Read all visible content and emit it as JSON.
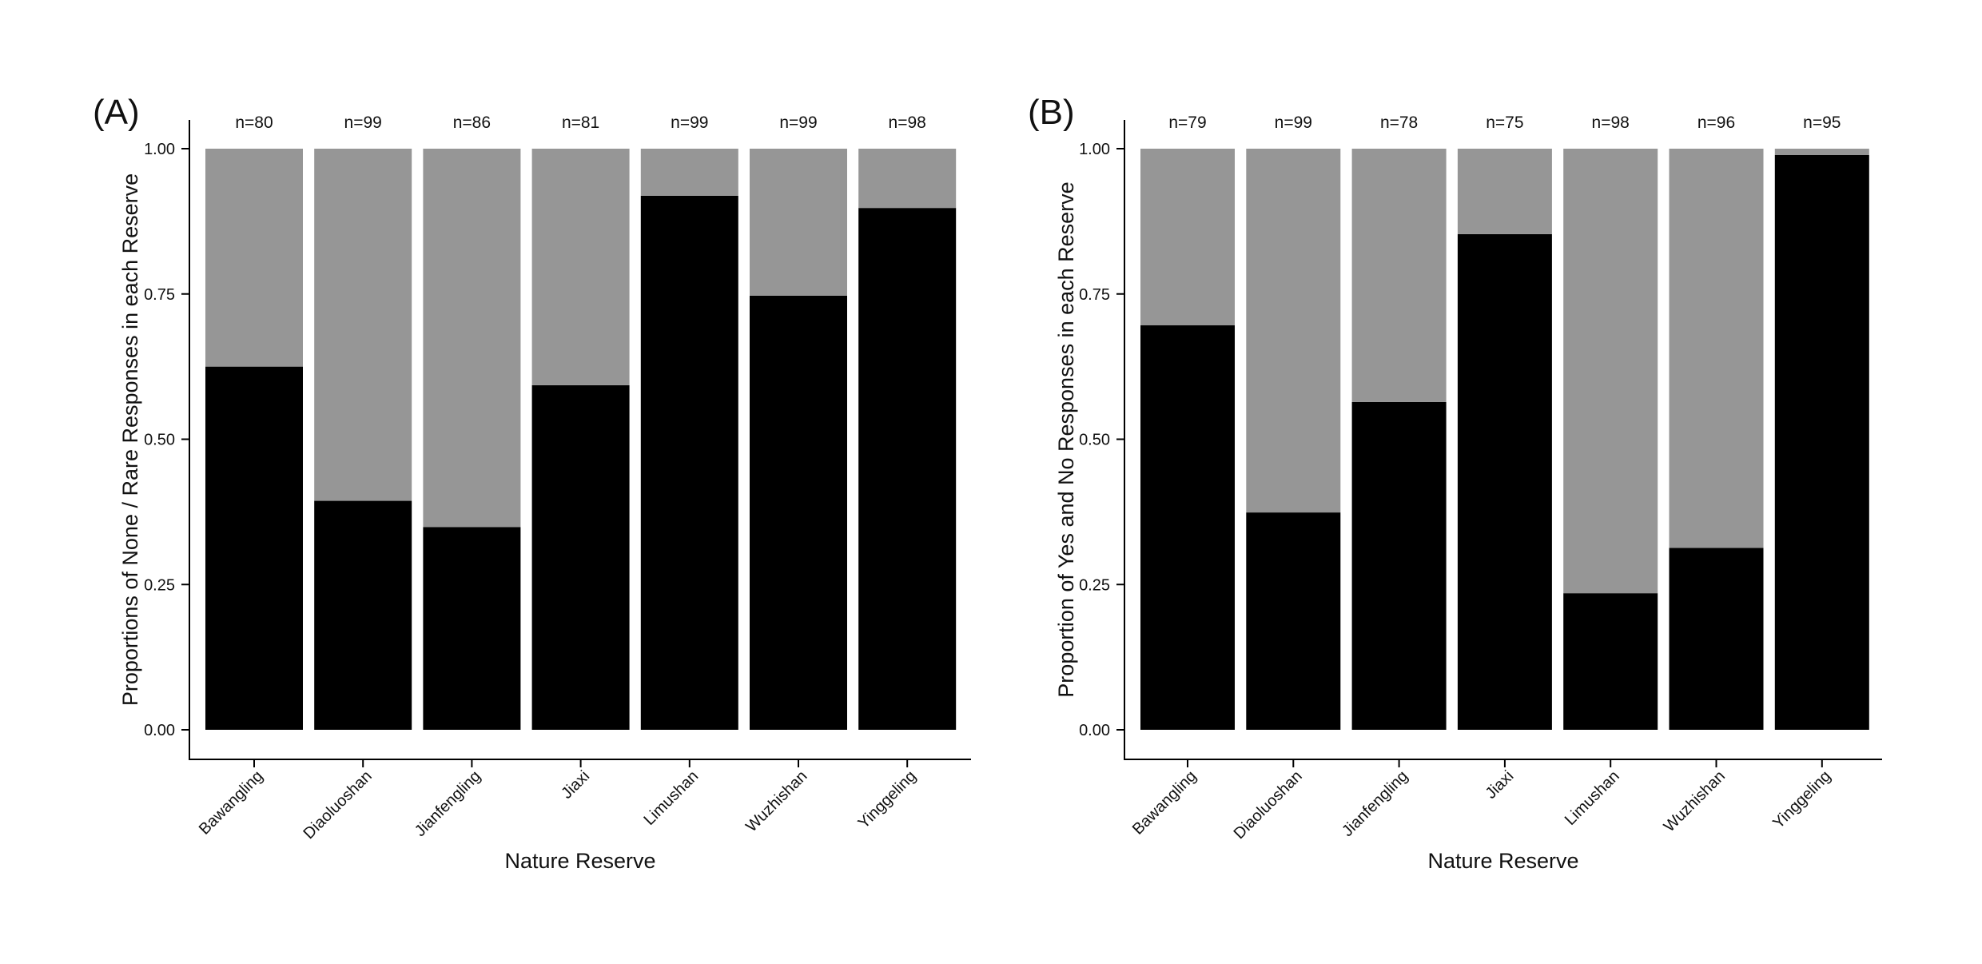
{
  "colors": {
    "primary": "#000000",
    "secondary": "#969696",
    "background": "#ffffff"
  },
  "chart_data": [
    {
      "panel": "(A)",
      "type": "bar",
      "stacked": true,
      "xlabel": "Nature Reserve",
      "ylabel": "Proportions of None / Rare Responses in each Reserve",
      "ylim": [
        0,
        1
      ],
      "yticks": [
        "0.00",
        "0.25",
        "0.50",
        "0.75",
        "1.00"
      ],
      "categories": [
        "Bawangling",
        "Diaoluoshan",
        "Jianfengling",
        "Jiaxi",
        "Limushan",
        "Wuzhishan",
        "Yinggeling"
      ],
      "sample_sizes": [
        "n=80",
        "n=99",
        "n=86",
        "n=81",
        "n=99",
        "n=99",
        "n=98"
      ],
      "series": [
        {
          "color": "#000000",
          "values": [
            0.625,
            0.394,
            0.349,
            0.593,
            0.919,
            0.747,
            0.898
          ]
        },
        {
          "color": "#969696",
          "values": [
            0.375,
            0.606,
            0.651,
            0.407,
            0.081,
            0.253,
            0.102
          ]
        }
      ]
    },
    {
      "panel": "(B)",
      "type": "bar",
      "stacked": true,
      "xlabel": "Nature Reserve",
      "ylabel": "Proportion of Yes and No Responses in each Reserve",
      "ylim": [
        0,
        1
      ],
      "yticks": [
        "0.00",
        "0.25",
        "0.50",
        "0.75",
        "1.00"
      ],
      "categories": [
        "Bawangling",
        "Diaoluoshan",
        "Jianfengling",
        "Jiaxi",
        "Limushan",
        "Wuzhishan",
        "Yinggeling"
      ],
      "sample_sizes": [
        "n=79",
        "n=99",
        "n=78",
        "n=75",
        "n=98",
        "n=96",
        "n=95"
      ],
      "series": [
        {
          "color": "#000000",
          "values": [
            0.696,
            0.374,
            0.564,
            0.853,
            0.235,
            0.313,
            0.989
          ]
        },
        {
          "color": "#969696",
          "values": [
            0.304,
            0.626,
            0.436,
            0.147,
            0.765,
            0.687,
            0.011
          ]
        }
      ]
    }
  ]
}
